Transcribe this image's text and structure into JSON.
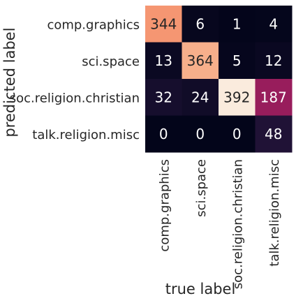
{
  "chart_data": {
    "type": "heatmap",
    "xlabel": "true label",
    "ylabel": "predicted label",
    "x_categories": [
      "comp.graphics",
      "sci.space",
      "soc.religion.christian",
      "talk.religion.misc"
    ],
    "y_categories": [
      "comp.graphics",
      "sci.space",
      "soc.religion.christian",
      "talk.religion.misc"
    ],
    "values": [
      [
        344,
        6,
        1,
        4
      ],
      [
        13,
        364,
        5,
        12
      ],
      [
        32,
        24,
        392,
        187
      ],
      [
        0,
        0,
        0,
        48
      ]
    ],
    "colorbar": false,
    "colormap": "rocket",
    "vmin": 0,
    "vmax": 392
  }
}
